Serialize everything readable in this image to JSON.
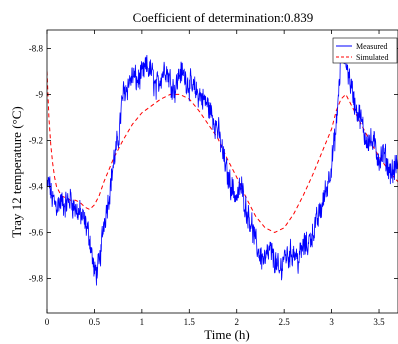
{
  "chart_data": {
    "type": "line",
    "title": "Coefficient of determination:0.839",
    "xlabel": "Time (h)",
    "ylabel": "Tray 12 temperature (°C)",
    "xlim": [
      0,
      3.7
    ],
    "ylim": [
      -9.95,
      -8.72
    ],
    "xticks": [
      0,
      0.5,
      1,
      1.5,
      2,
      2.5,
      3,
      3.5
    ],
    "xtick_labels": [
      "0",
      "0.5",
      "1",
      "1.5",
      "2",
      "2.5",
      "3",
      "3.5"
    ],
    "yticks": [
      -9.8,
      -9.6,
      -9.4,
      -9.2,
      -9.0,
      -8.8
    ],
    "ytick_labels": [
      "-9.8",
      "-9.6",
      "-9.4",
      "-9.2",
      "-9",
      "-8.8"
    ],
    "grid": false,
    "legend_position": "top-right",
    "series": [
      {
        "name": "Measured",
        "color": "#0000ff",
        "style": "solid",
        "noisy": true,
        "x": [
          0,
          0.02,
          0.05,
          0.1,
          0.15,
          0.2,
          0.25,
          0.3,
          0.35,
          0.4,
          0.45,
          0.5,
          0.55,
          0.6,
          0.65,
          0.7,
          0.75,
          0.8,
          0.85,
          0.9,
          0.95,
          1.0,
          1.05,
          1.1,
          1.15,
          1.2,
          1.25,
          1.3,
          1.35,
          1.4,
          1.45,
          1.5,
          1.55,
          1.6,
          1.65,
          1.7,
          1.75,
          1.8,
          1.85,
          1.9,
          1.95,
          2.0,
          2.05,
          2.1,
          2.15,
          2.2,
          2.25,
          2.3,
          2.35,
          2.4,
          2.45,
          2.5,
          2.55,
          2.6,
          2.65,
          2.7,
          2.75,
          2.8,
          2.85,
          2.9,
          2.95,
          3.0,
          3.05,
          3.1,
          3.15,
          3.2,
          3.25,
          3.3,
          3.35,
          3.4,
          3.45,
          3.5,
          3.55,
          3.6,
          3.65,
          3.7
        ],
        "values": [
          -9.42,
          -9.38,
          -9.45,
          -9.48,
          -9.47,
          -9.48,
          -9.45,
          -9.5,
          -9.52,
          -9.56,
          -9.62,
          -9.78,
          -9.75,
          -9.55,
          -9.45,
          -9.3,
          -9.2,
          -9.0,
          -8.96,
          -8.92,
          -8.94,
          -8.92,
          -8.88,
          -8.9,
          -8.98,
          -8.92,
          -8.88,
          -8.94,
          -8.98,
          -8.9,
          -8.92,
          -8.96,
          -8.98,
          -9.0,
          -9.02,
          -9.05,
          -9.1,
          -9.15,
          -9.25,
          -9.35,
          -9.4,
          -9.45,
          -9.4,
          -9.5,
          -9.55,
          -9.65,
          -9.7,
          -9.72,
          -9.68,
          -9.72,
          -9.78,
          -9.7,
          -9.7,
          -9.68,
          -9.72,
          -9.66,
          -9.65,
          -9.6,
          -9.55,
          -9.48,
          -9.4,
          -9.3,
          -9.15,
          -8.82,
          -8.85,
          -8.95,
          -9.05,
          -9.1,
          -9.18,
          -9.2,
          -9.22,
          -9.28,
          -9.26,
          -9.32,
          -9.34,
          -9.3
        ]
      },
      {
        "name": "Simulated",
        "color": "#ff0000",
        "style": "dashed",
        "noisy": false,
        "x": [
          0,
          0.02,
          0.04,
          0.06,
          0.08,
          0.1,
          0.15,
          0.2,
          0.25,
          0.3,
          0.35,
          0.4,
          0.45,
          0.5,
          0.55,
          0.6,
          0.65,
          0.7,
          0.8,
          0.9,
          1.0,
          1.1,
          1.2,
          1.3,
          1.4,
          1.5,
          1.6,
          1.7,
          1.8,
          1.9,
          2.0,
          2.1,
          2.2,
          2.3,
          2.4,
          2.5,
          2.6,
          2.7,
          2.8,
          2.9,
          3.0,
          3.05,
          3.1,
          3.15,
          3.2,
          3.3,
          3.4,
          3.5,
          3.6,
          3.7
        ],
        "values": [
          -8.9,
          -9.1,
          -9.22,
          -9.3,
          -9.36,
          -9.4,
          -9.44,
          -9.45,
          -9.46,
          -9.46,
          -9.47,
          -9.49,
          -9.5,
          -9.48,
          -9.44,
          -9.38,
          -9.33,
          -9.28,
          -9.2,
          -9.13,
          -9.08,
          -9.05,
          -9.02,
          -9.0,
          -9.0,
          -9.02,
          -9.07,
          -9.13,
          -9.19,
          -9.28,
          -9.36,
          -9.45,
          -9.53,
          -9.58,
          -9.6,
          -9.58,
          -9.52,
          -9.44,
          -9.35,
          -9.25,
          -9.15,
          -9.07,
          -9.02,
          -9.0,
          -9.04,
          -9.12,
          -9.2,
          -9.27,
          -9.33,
          -9.38
        ]
      }
    ]
  }
}
